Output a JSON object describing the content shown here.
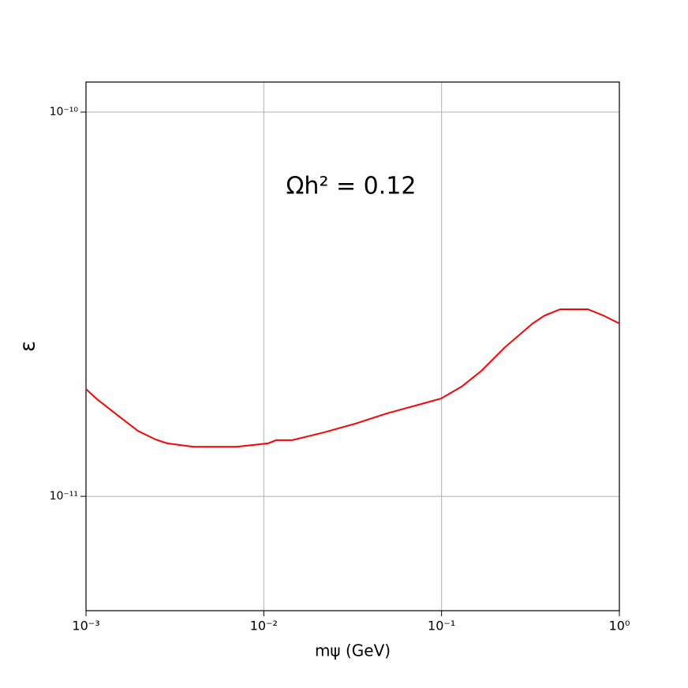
{
  "chart_data": {
    "type": "line",
    "annotation": "Ωh² = 0.12",
    "x_label": "mψ (GeV)",
    "y_label": "ε",
    "log_x": true,
    "log_y": true,
    "grid": true,
    "xlim": [
      0.001,
      1
    ],
    "ylim": [
      5.04e-12,
      1.197e-10
    ],
    "xticks": [
      {
        "value": 0.001,
        "label": "10⁻³"
      },
      {
        "value": 0.01,
        "label": "10⁻²"
      },
      {
        "value": 0.1,
        "label": "10⁻¹"
      },
      {
        "value": 1,
        "label": "10⁰"
      }
    ],
    "yticks": [
      {
        "value": 1e-11,
        "label": "10⁻¹¹"
      },
      {
        "value": 1e-10,
        "label": "10⁻¹⁰"
      }
    ],
    "x": [
      0.001,
      0.001154,
      0.00152,
      0.00196,
      0.00246,
      0.00286,
      0.00401,
      0.00704,
      0.01059,
      0.01174,
      0.01442,
      0.02166,
      0.0326,
      0.0491,
      0.0738,
      0.0993,
      0.1296,
      0.1673,
      0.2274,
      0.325,
      0.379,
      0.465,
      0.665,
      0.815,
      1.0
    ],
    "series": [
      {
        "color": "#ff0000",
        "values": [
          1.902e-11,
          1.789e-11,
          1.62e-11,
          1.48e-11,
          1.406e-11,
          1.374e-11,
          1.346e-11,
          1.346e-11,
          1.374e-11,
          1.4e-11,
          1.4e-11,
          1.466e-11,
          1.545e-11,
          1.643e-11,
          1.73e-11,
          1.797e-11,
          1.93e-11,
          2.12e-11,
          2.444e-11,
          2.817e-11,
          2.953e-11,
          3.068e-11,
          3.068e-11,
          2.953e-11,
          2.817e-11
        ]
      }
    ]
  }
}
